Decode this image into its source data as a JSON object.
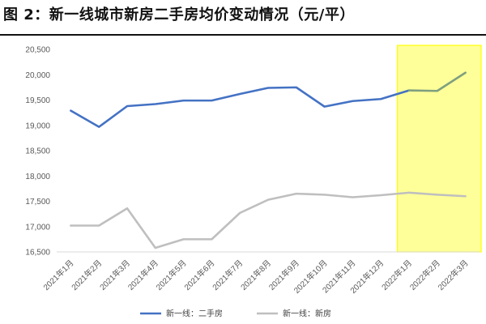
{
  "chart_data": {
    "type": "line",
    "title": "图 2：新一线城市新房二手房均价变动情况（元/平）",
    "xlabel": "",
    "ylabel": "",
    "categories": [
      "2021年1月",
      "2021年2月",
      "2021年3月",
      "2021年4月",
      "2021年5月",
      "2021年6月",
      "2021年7月",
      "2021年8月",
      "2021年9月",
      "2021年10月",
      "2021年11月",
      "2021年12月",
      "2022年1月",
      "2022年2月",
      "2022年3月"
    ],
    "series": [
      {
        "name": "新一线：二手房",
        "color": "#4472C4",
        "values": [
          19290,
          18970,
          19380,
          19420,
          19490,
          19490,
          19620,
          19740,
          19750,
          19370,
          19480,
          19520,
          19690,
          19680,
          20040
        ]
      },
      {
        "name": "新一线：新房",
        "color": "#BFBFBF",
        "values": [
          17020,
          17020,
          17360,
          16580,
          16750,
          16750,
          17270,
          17530,
          17650,
          17630,
          17580,
          17620,
          17670,
          17630,
          17600
        ]
      }
    ],
    "ylim": [
      16500,
      20500
    ],
    "yticks": [
      "16,500",
      "17,000",
      "17,500",
      "18,000",
      "18,500",
      "19,000",
      "19,500",
      "20,000",
      "20,500"
    ],
    "highlight": {
      "from_index": 12,
      "to_index": 14,
      "fill": "#FFFF99",
      "stroke": "#FFFF00",
      "blend_color": "#7F9F7F"
    },
    "grid": false,
    "legend": "bottom"
  }
}
